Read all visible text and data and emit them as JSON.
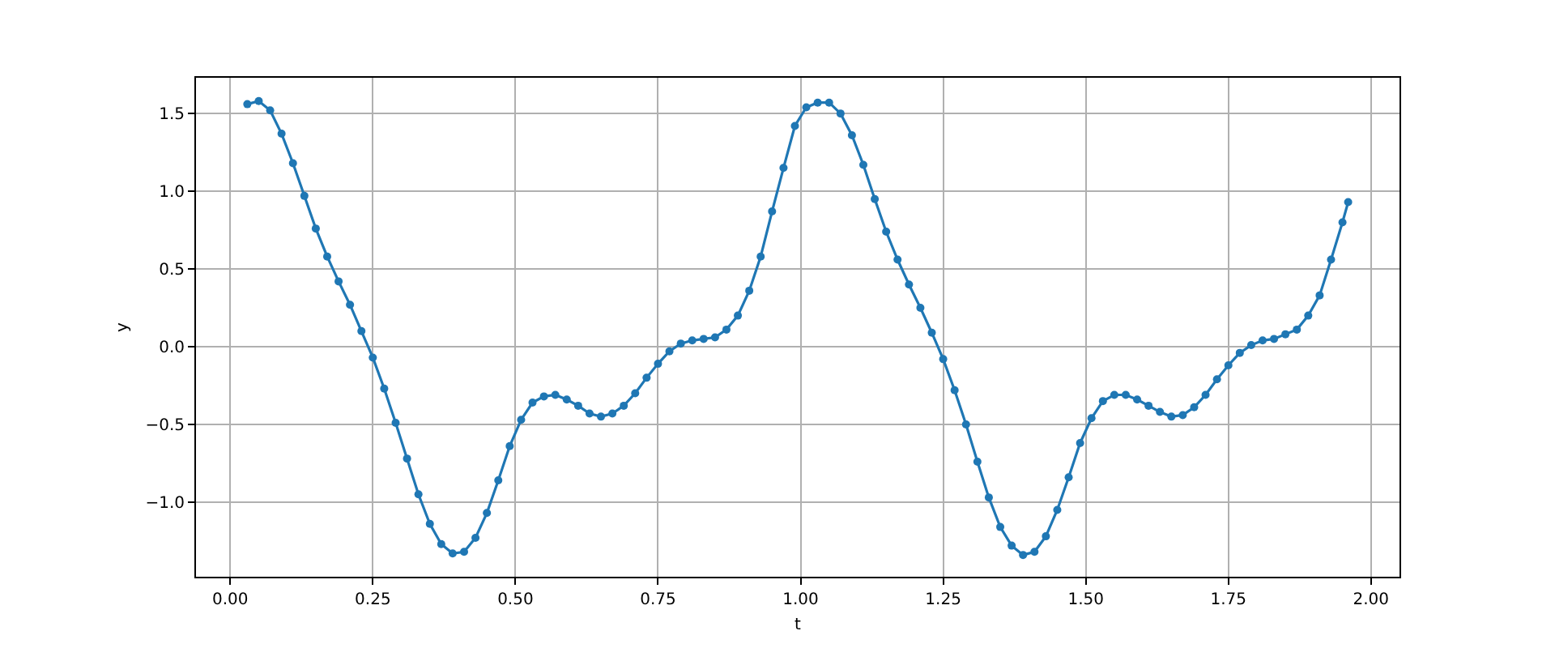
{
  "chart_data": {
    "type": "line",
    "xlabel": "t",
    "ylabel": "y",
    "x": [
      0.03,
      0.05,
      0.07,
      0.09,
      0.11,
      0.13,
      0.15,
      0.17,
      0.19,
      0.21,
      0.23,
      0.25,
      0.27,
      0.29,
      0.31,
      0.33,
      0.35,
      0.37,
      0.39,
      0.41,
      0.43,
      0.45,
      0.47,
      0.49,
      0.51,
      0.53,
      0.55,
      0.57,
      0.59,
      0.61,
      0.63,
      0.65,
      0.67,
      0.69,
      0.71,
      0.73,
      0.75,
      0.77,
      0.79,
      0.81,
      0.83,
      0.85,
      0.87,
      0.89,
      0.91,
      0.93,
      0.95,
      0.97,
      0.99,
      1.01,
      1.03,
      1.05,
      1.07,
      1.09,
      1.11,
      1.13,
      1.15,
      1.17,
      1.19,
      1.21,
      1.23,
      1.25,
      1.27,
      1.29,
      1.31,
      1.33,
      1.35,
      1.37,
      1.39,
      1.41,
      1.43,
      1.45,
      1.47,
      1.49,
      1.51,
      1.53,
      1.55,
      1.57,
      1.59,
      1.61,
      1.63,
      1.65,
      1.67,
      1.69,
      1.71,
      1.73,
      1.75,
      1.77,
      1.79,
      1.81,
      1.83,
      1.85,
      1.87,
      1.89,
      1.91,
      1.93,
      1.95,
      1.96
    ],
    "series": [
      {
        "color": "#1f77b4",
        "values": [
          1.56,
          1.58,
          1.52,
          1.37,
          1.18,
          0.97,
          0.76,
          0.58,
          0.42,
          0.27,
          0.1,
          -0.07,
          -0.27,
          -0.49,
          -0.72,
          -0.95,
          -1.14,
          -1.27,
          -1.33,
          -1.32,
          -1.23,
          -1.07,
          -0.86,
          -0.64,
          -0.47,
          -0.36,
          -0.32,
          -0.31,
          -0.34,
          -0.38,
          -0.43,
          -0.45,
          -0.43,
          -0.38,
          -0.3,
          -0.2,
          -0.11,
          -0.03,
          0.02,
          0.04,
          0.05,
          0.06,
          0.11,
          0.2,
          0.36,
          0.58,
          0.87,
          1.15,
          1.42,
          1.54,
          1.57,
          1.57,
          1.5,
          1.36,
          1.17,
          0.95,
          0.74,
          0.56,
          0.4,
          0.25,
          0.09,
          -0.08,
          -0.28,
          -0.5,
          -0.74,
          -0.97,
          -1.16,
          -1.28,
          -1.34,
          -1.32,
          -1.22,
          -1.05,
          -0.84,
          -0.62,
          -0.46,
          -0.35,
          -0.31,
          -0.31,
          -0.34,
          -0.38,
          -0.42,
          -0.45,
          -0.44,
          -0.39,
          -0.31,
          -0.21,
          -0.12,
          -0.04,
          0.01,
          0.04,
          0.05,
          0.08,
          0.11,
          0.2,
          0.33,
          0.56,
          0.8,
          0.93
        ]
      }
    ],
    "xlim": [
      -0.06,
      2.05
    ],
    "ylim": [
      -1.48,
      1.73
    ],
    "xticks": [
      {
        "value": 0,
        "label": "0.00"
      },
      {
        "value": 0.25,
        "label": "0.25"
      },
      {
        "value": 0.5,
        "label": "0.50"
      },
      {
        "value": 0.75,
        "label": "0.75"
      },
      {
        "value": 1,
        "label": "1.00"
      },
      {
        "value": 1.25,
        "label": "1.25"
      },
      {
        "value": 1.5,
        "label": "1.50"
      },
      {
        "value": 1.75,
        "label": "1.75"
      },
      {
        "value": 2,
        "label": "2.00"
      }
    ],
    "yticks": [
      {
        "value": -1,
        "label": "−1.0"
      },
      {
        "value": -0.5,
        "label": "−0.5"
      },
      {
        "value": 0,
        "label": "0.0"
      },
      {
        "value": 0.5,
        "label": "0.5"
      },
      {
        "value": 1,
        "label": "1.0"
      },
      {
        "value": 1.5,
        "label": "1.5"
      }
    ],
    "grid": true,
    "marker": "circle",
    "line_style": "solid"
  }
}
